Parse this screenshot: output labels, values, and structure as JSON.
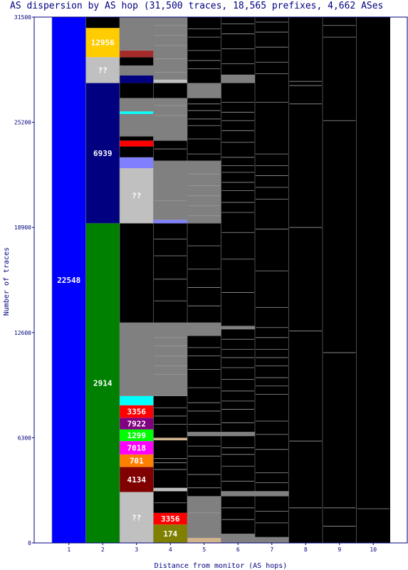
{
  "chart_data": {
    "type": "bar",
    "title": "AS dispersion by AS hop (31,500 traces, 18,565 prefixes, 4,662 ASes",
    "xlabel": "Distance from monitor (AS hops)",
    "ylabel": "Number of traces",
    "ylim": [
      0,
      31500
    ],
    "y_ticks": [
      "0",
      "6300",
      "12600",
      "18900",
      "25200",
      "31500"
    ],
    "x_ticks": [
      "1",
      "2",
      "3",
      "4",
      "5",
      "6",
      "7",
      "8",
      "9",
      "10"
    ],
    "grid": false,
    "columns": [
      {
        "hop": 1,
        "segments": [
          {
            "label": "22548",
            "y0": 0,
            "y1": 31500,
            "color": "#0000ff"
          }
        ]
      },
      {
        "hop": 2,
        "segments": [
          {
            "label": "2914",
            "y0": 0,
            "y1": 19150,
            "color": "#008000"
          },
          {
            "label": "6939",
            "y0": 19150,
            "y1": 27550,
            "color": "#000080"
          },
          {
            "label": "??",
            "y0": 27550,
            "y1": 29100,
            "color": "#c0c0c0"
          },
          {
            "label": "12956",
            "y0": 29100,
            "y1": 30850,
            "color": "#ffcc00"
          },
          {
            "label": "",
            "y0": 30850,
            "y1": 31500,
            "color": "#000000"
          }
        ]
      },
      {
        "hop": 3,
        "segments": [
          {
            "label": "??",
            "y0": 0,
            "y1": 3050,
            "color": "#c0c0c0"
          },
          {
            "label": "4134",
            "y0": 3050,
            "y1": 4550,
            "color": "#800000"
          },
          {
            "label": "701",
            "y0": 4550,
            "y1": 5300,
            "color": "#ff8000"
          },
          {
            "label": "7018",
            "y0": 5300,
            "y1": 6100,
            "color": "#ff00ff"
          },
          {
            "label": "1299",
            "y0": 6100,
            "y1": 6800,
            "color": "#00ff00"
          },
          {
            "label": "7922",
            "y0": 6800,
            "y1": 7500,
            "color": "#800080"
          },
          {
            "label": "3356",
            "y0": 7500,
            "y1": 8250,
            "color": "#ff0000"
          },
          {
            "label": "",
            "y0": 8250,
            "y1": 8800,
            "color": "#00ffff"
          },
          {
            "label": "",
            "y0": 8800,
            "y1": 13200,
            "color": "#808080"
          },
          {
            "label": "",
            "y0": 13200,
            "y1": 19150,
            "color": "#000000"
          },
          {
            "label": "??",
            "y0": 19150,
            "y1": 22450,
            "color": "#c0c0c0"
          },
          {
            "label": "",
            "y0": 22450,
            "y1": 23100,
            "color": "#8080ff"
          },
          {
            "label": "",
            "y0": 23100,
            "y1": 23750,
            "color": "#000000"
          },
          {
            "label": "",
            "y0": 23750,
            "y1": 24100,
            "color": "#ff0000"
          },
          {
            "label": "",
            "y0": 24100,
            "y1": 24350,
            "color": "#000000"
          },
          {
            "label": "",
            "y0": 24350,
            "y1": 25700,
            "color": "#808080"
          },
          {
            "label": "",
            "y0": 25700,
            "y1": 25850,
            "color": "#00ffff"
          },
          {
            "label": "",
            "y0": 25850,
            "y1": 26650,
            "color": "#808080"
          },
          {
            "label": "",
            "y0": 26650,
            "y1": 27550,
            "color": "#000000"
          },
          {
            "label": "",
            "y0": 27550,
            "y1": 28000,
            "color": "#000080"
          },
          {
            "label": "",
            "y0": 28000,
            "y1": 28600,
            "color": "#808080"
          },
          {
            "label": "",
            "y0": 28600,
            "y1": 29100,
            "color": "#000000"
          },
          {
            "label": "",
            "y0": 29100,
            "y1": 29500,
            "color": "#a52a2a"
          },
          {
            "label": "",
            "y0": 29500,
            "y1": 31500,
            "color": "#808080"
          }
        ]
      },
      {
        "hop": 4,
        "segments": [
          {
            "label": "174",
            "y0": 0,
            "y1": 1100,
            "color": "#808000"
          },
          {
            "label": "3356",
            "y0": 1100,
            "y1": 1800,
            "color": "#ff0000"
          },
          {
            "label": "",
            "y0": 1800,
            "y1": 3100,
            "color": "#000000"
          },
          {
            "label": "",
            "y0": 3100,
            "y1": 3300,
            "color": "#c0c0c0"
          },
          {
            "label": "",
            "y0": 3300,
            "y1": 6150,
            "color": "#000000"
          },
          {
            "label": "",
            "y0": 6150,
            "y1": 6300,
            "color": "#d2b48c"
          },
          {
            "label": "",
            "y0": 6300,
            "y1": 8800,
            "color": "#000000"
          },
          {
            "label": "",
            "y0": 8800,
            "y1": 13200,
            "color": "#808080"
          },
          {
            "label": "",
            "y0": 13200,
            "y1": 19150,
            "color": "#000000"
          },
          {
            "label": "",
            "y0": 19150,
            "y1": 19350,
            "color": "#8080ff"
          },
          {
            "label": "",
            "y0": 19350,
            "y1": 22900,
            "color": "#808080"
          },
          {
            "label": "",
            "y0": 22900,
            "y1": 24100,
            "color": "#000000"
          },
          {
            "label": "",
            "y0": 24100,
            "y1": 26650,
            "color": "#808080"
          },
          {
            "label": "",
            "y0": 26650,
            "y1": 27550,
            "color": "#000000"
          },
          {
            "label": "",
            "y0": 27550,
            "y1": 27750,
            "color": "#c0c0c0"
          },
          {
            "label": "",
            "y0": 27750,
            "y1": 31500,
            "color": "#808080"
          }
        ]
      },
      {
        "hop": 5,
        "segments": [
          {
            "label": "",
            "y0": 0,
            "y1": 300,
            "color": "#d2b48c"
          },
          {
            "label": "",
            "y0": 300,
            "y1": 2800,
            "color": "#808080"
          },
          {
            "label": "",
            "y0": 2800,
            "y1": 6400,
            "color": "#000000"
          },
          {
            "label": "",
            "y0": 6400,
            "y1": 6650,
            "color": "#808080"
          },
          {
            "label": "",
            "y0": 6650,
            "y1": 12400,
            "color": "#000000"
          },
          {
            "label": "",
            "y0": 12400,
            "y1": 13200,
            "color": "#808080"
          },
          {
            "label": "",
            "y0": 13200,
            "y1": 19150,
            "color": "#000000"
          },
          {
            "label": "",
            "y0": 19150,
            "y1": 22900,
            "color": "#808080"
          },
          {
            "label": "",
            "y0": 22900,
            "y1": 26650,
            "color": "#000000"
          },
          {
            "label": "",
            "y0": 26650,
            "y1": 27550,
            "color": "#808080"
          },
          {
            "label": "",
            "y0": 27550,
            "y1": 31500,
            "color": "#000000"
          }
        ]
      },
      {
        "hop": 6,
        "segments": [
          {
            "label": "",
            "y0": 0,
            "y1": 550,
            "color": "#808080"
          },
          {
            "label": "",
            "y0": 550,
            "y1": 2800,
            "color": "#000000"
          },
          {
            "label": "",
            "y0": 2800,
            "y1": 3100,
            "color": "#808080"
          },
          {
            "label": "",
            "y0": 3100,
            "y1": 6400,
            "color": "#000000"
          },
          {
            "label": "",
            "y0": 6400,
            "y1": 6650,
            "color": "#808080"
          },
          {
            "label": "",
            "y0": 6650,
            "y1": 12800,
            "color": "#000000"
          },
          {
            "label": "",
            "y0": 12800,
            "y1": 13000,
            "color": "#808080"
          },
          {
            "label": "",
            "y0": 13000,
            "y1": 27550,
            "color": "#000000"
          },
          {
            "label": "",
            "y0": 27550,
            "y1": 28050,
            "color": "#808080"
          },
          {
            "label": "",
            "y0": 28050,
            "y1": 31500,
            "color": "#000000"
          }
        ]
      },
      {
        "hop": 7,
        "segments": [
          {
            "label": "",
            "y0": 0,
            "y1": 350,
            "color": "#808080"
          },
          {
            "label": "",
            "y0": 350,
            "y1": 2800,
            "color": "#000000"
          },
          {
            "label": "",
            "y0": 2800,
            "y1": 3100,
            "color": "#808080"
          },
          {
            "label": "",
            "y0": 3100,
            "y1": 31500,
            "color": "#000000"
          }
        ]
      },
      {
        "hop": 8,
        "segments": [
          {
            "label": "",
            "y0": 0,
            "y1": 31500,
            "color": "#000000"
          }
        ]
      },
      {
        "hop": 9,
        "segments": [
          {
            "label": "",
            "y0": 0,
            "y1": 31500,
            "color": "#000000"
          }
        ]
      },
      {
        "hop": 10,
        "segments": [
          {
            "label": "",
            "y0": 0,
            "y1": 31500,
            "color": "#000000"
          }
        ]
      }
    ],
    "thin_lines": [
      {
        "hop": 4,
        "values": [
          2400,
          4400,
          4800,
          5050,
          7100,
          7600,
          8100,
          10100,
          10600,
          11200,
          11800,
          12300,
          14500,
          15800,
          17200,
          18200,
          20500,
          23600,
          25600,
          26200,
          28200,
          29000,
          29800,
          30400,
          31000
        ]
      },
      {
        "hop": 5,
        "values": [
          1800,
          3300,
          4100,
          5200,
          5800,
          7100,
          7900,
          8400,
          9300,
          10400,
          11200,
          11700,
          14200,
          15300,
          16400,
          17800,
          19600,
          20200,
          20800,
          21400,
          22100,
          23300,
          24200,
          25000,
          25400,
          25900,
          26300,
          28400,
          28900,
          29500,
          30300,
          30800
        ]
      },
      {
        "hop": 6,
        "values": [
          1400,
          2100,
          3700,
          4600,
          5300,
          5700,
          7200,
          8000,
          8500,
          9100,
          9800,
          10500,
          11100,
          11600,
          12200,
          15000,
          17000,
          18600,
          19800,
          20400,
          21100,
          21600,
          22200,
          22600,
          23100,
          24000,
          24700,
          25300,
          25800,
          26400,
          28700,
          29600,
          30500,
          31100
        ]
      },
      {
        "hop": 7,
        "values": [
          1200,
          1900,
          3600,
          4200,
          5600,
          6500,
          7300,
          8900,
          9400,
          9900,
          10600,
          11100,
          11600,
          12300,
          12900,
          14100,
          16300,
          18800,
          20600,
          21300,
          22000,
          22600,
          23300,
          26400,
          28100,
          28800,
          29700,
          30600,
          31200
        ]
      },
      {
        "hop": 8,
        "values": [
          2100,
          6100,
          12700,
          18900,
          26300,
          27400,
          27650
        ]
      },
      {
        "hop": 9,
        "values": [
          1000,
          2100,
          11400,
          25300,
          30300,
          31000
        ]
      },
      {
        "hop": 10,
        "values": [
          2050
        ]
      }
    ]
  }
}
